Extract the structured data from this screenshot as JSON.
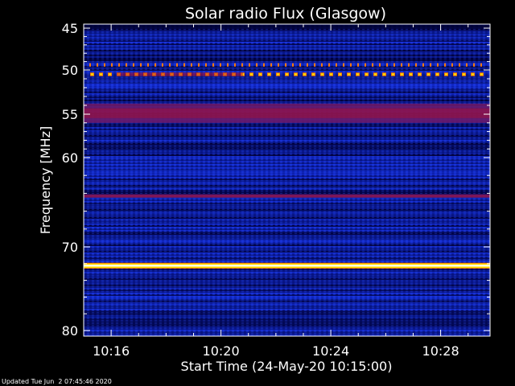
{
  "chart_data": {
    "type": "heatmap",
    "title": "Solar radio Flux (Glasgow)",
    "ylabel": "Frequency [MHz]",
    "xlabel": "Start Time (24-May-20 10:15:00)",
    "ylim": [
      45,
      80
    ],
    "y_ticks": [
      "45",
      "50",
      "55",
      "60",
      "70",
      "80"
    ],
    "y_tick_values": [
      45,
      50,
      55,
      60,
      70,
      80
    ],
    "x_ticks": [
      "10:16",
      "10:20",
      "10:24",
      "10:28"
    ],
    "x_tick_values_minutes": [
      1,
      5,
      9,
      13
    ],
    "x_range_minutes": [
      0,
      14.8
    ],
    "y_scale": "nonlinear",
    "colormap": [
      "#000030",
      "#0a1a8c",
      "#1530d8",
      "#6a1a6a",
      "#b01030",
      "#ff7a00",
      "#ffe000",
      "#ffffff"
    ],
    "bands": [
      {
        "freq_mhz": [
          53.8,
          56.0
        ],
        "level": "medium-red"
      },
      {
        "freq_mhz": [
          64.1,
          64.5
        ],
        "level": "medium-red"
      },
      {
        "freq_mhz": [
          72.0,
          72.5
        ],
        "level": "high"
      },
      {
        "freq_mhz": [
          50.3,
          50.6
        ],
        "level": "high-intermittent"
      },
      {
        "freq_mhz": [
          49.2,
          49.5
        ],
        "level": "medium-intermittent"
      }
    ]
  },
  "footer": "Updated Tue Jun  2 07:45:46 2020"
}
